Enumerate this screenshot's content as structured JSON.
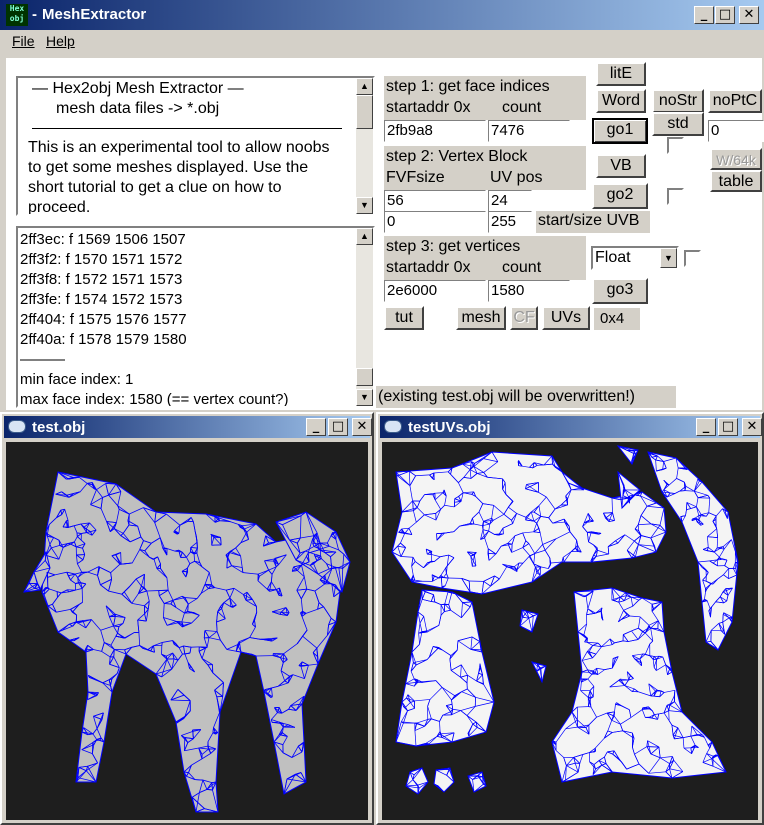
{
  "app": {
    "title": "MeshExtractor",
    "title_prefix": "- ",
    "icon": "hex2obj-icon",
    "icon_text_top": "Hex",
    "icon_text_bottom": "obj"
  },
  "menu": {
    "file": "File",
    "help": "Help"
  },
  "info": {
    "heading": "—   Hex2obj Mesh Extractor   —",
    "subheading": "mesh data files -> *.obj",
    "description": "This is an experimental tool to allow noobs to get some meshes displayed. Use the short tutorial to get a clue on how to proceed."
  },
  "log": {
    "lines": [
      "2ff3ec: f  1569 1506 1507",
      "2ff3f2: f  1570 1571 1572",
      "2ff3f8: f  1572 1571 1573",
      "2ff3fe: f  1574 1572 1573",
      "2ff404: f  1575 1576 1577",
      "2ff40a: f  1578 1579 1580"
    ],
    "separator": "———",
    "min_face": "min face index: 1",
    "max_face": "max face index: 1580 (== vertex count?)"
  },
  "step1": {
    "title": "step 1: get face indices",
    "label_addr": "startaddr 0x",
    "label_count": "count",
    "addr": "2fb9a8",
    "count": "7476"
  },
  "step2": {
    "title": "step 2: Vertex Block",
    "label_fvf": "FVFsize",
    "label_uv": "UV pos",
    "fvf": "56",
    "uv": "24",
    "start": "0",
    "size": "255",
    "uvb_label": "start/size UVB"
  },
  "step3": {
    "title": "step 3: get vertices",
    "label_addr": "startaddr 0x",
    "label_count": "count",
    "addr": "2e6000",
    "count": "1580",
    "type": "Float"
  },
  "buttons": {
    "lite": "litE",
    "word": "Word",
    "nostr": "noStr",
    "noptc": "noPtC",
    "std": "std",
    "go1": "go1",
    "vb": "VB",
    "w64k": "W/64k",
    "table": "table",
    "go2": "go2",
    "go3": "go3",
    "tut": "tut",
    "mesh": "mesh",
    "cf": "CF",
    "uvs": "UVs"
  },
  "field_right": "0",
  "hex_label": "0x4",
  "warning": "(existing test.obj will be overwritten!)",
  "windows": {
    "mesh": "test.obj",
    "uv": "testUVs.obj"
  },
  "colors": {
    "wireframe": "#0000ff",
    "viewport_bg": "#1e1e1e",
    "titlebar": "#0a246a"
  }
}
